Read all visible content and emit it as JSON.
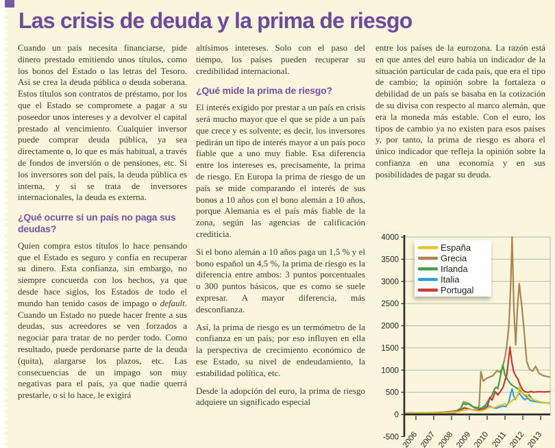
{
  "page": {
    "title": "Las crisis de deuda y la prima de riesgo"
  },
  "colors": {
    "page_bg": "#faf6dd",
    "title": "#6d4a9e",
    "heading": "#7b4fa5",
    "body_text": "#3c3a30",
    "axis": "#2b2a24",
    "grid": "#bcb9a8",
    "legend_bg": "#ffffff",
    "corner_mark": "#7a58a6"
  },
  "columns": {
    "col1": {
      "para1": "Cuando un país necesita financiarse, pide dinero prestado emitiendo unos títulos, como los bonos del Estado o las letras del Tesoro. Así se crea la deuda pública o deuda soberana. Estos títulos son contratos de préstamo, por los que el Estado se compromete a pagar a su poseedor unos intereses y a devolver el capital prestado al vencimiento. Cualquier inversor puede comprar deuda pública, ya sea directamente o, lo que es más habitual, a través de fondos de inversión o de pensiones, etc. Si los inversores son del país, la deuda pública es interna, y si se trata de inversores internacionales, la deuda es externa.",
      "heading1": "¿Qué ocurre si un país no paga sus deudas?",
      "para2_pre": "Quien compra estos títulos lo hace pensando que el Estado es seguro y confía en recuperar su dinero. Esta confianza, sin embargo, no siempre concuerda con los hechos, ya que desde hace siglos, los Estados de todo el mundo han tenido casos de impago o ",
      "para2_italic": "default",
      "para2_post": ". Cuando un Estado no puede hacer frente a sus deudas, sus acreedores se ven forzados a negociar para tratar de no perder todo. Como resultado, puede perdonarse parte de la deuda (quita), alargarse los plazos, etc. Las consecuencias de un impago son muy negativas para el país, ya que nadie querrá prestarle, o si lo hace, le exigirá"
    },
    "col2": {
      "para1": "altísimos intereses. Solo con el paso del tiempo, los países pueden recuperar su credibilidad internacional.",
      "heading1": "¿Qué mide la prima de riesgo?",
      "para2": "El interés exigido por prestar a un país en crisis será mucho mayor que el que se pide a un país que crece y es solvente; es decir, los inversores pedirán un tipo de interés mayor a un país poco fiable que a uno muy fiable. Esa diferencia entre los intereses es, precisamente, la prima de riesgo. En Europa la prima de riesgo de un país se mide comparando el interés de sus bonos a 10 años con el bono alemán a 10 años, porque Alemania es el país más fiable de la zona, según las agencias de calificación crediticia.",
      "para3": "Si el bono alemán a 10 años paga un 1,5 % y el bono español un 4,5 %, la prima de riesgo es la diferencia entre ambos: 3 puntos porcentuales o 300 puntos básicos, que es como se suele expresar. A mayor diferencia, más desconfianza.",
      "para4": "Así, la prima de riesgo es un termómetro de la confianza en un país; por eso influyen en ella la perspectiva de crecimiento económico de ese Estado, su nivel de endeudamiento, la estabilidad política, etc.",
      "para5": "Desde la adopción del euro, la prima de riesgo adquiere un significado especial"
    },
    "col3": {
      "para1": "entre los países de la eurozona. La razón está en que antes del euro había un indicador de la situación particular de cada país, que era el tipo de cambio; la opinión sobre la fortaleza o debilidad de un país se basaba en la cotización de su divisa con respecto al marco alemán, que era la moneda más estable. Con el euro, los tipos de cambio ya no existen para esos países y, por tanto, la prima de riesgo es ahora el único indicador que refleja la opinión sobre la confianza en una economía y en sus posibilidades de pagar su deuda."
    }
  },
  "chart_data": {
    "type": "line",
    "title": "",
    "xlabel": "",
    "ylabel": "",
    "units": "puntos básicos (prima de riesgo)",
    "ylim": [
      -500,
      4000
    ],
    "y_ticks": [
      -500,
      0,
      500,
      1000,
      1500,
      2000,
      2500,
      3000,
      3500,
      4000
    ],
    "x_range": [
      2005.35,
      2013.5
    ],
    "x_ticks": [
      2006,
      2007,
      2008,
      2009,
      2010,
      2011,
      2012,
      2013
    ],
    "x_tick_labels": [
      "2006",
      "2007",
      "2008",
      "2009",
      "2010",
      "2011",
      "2012",
      "2013"
    ],
    "grid": true,
    "legend_position": "top-left",
    "draw_order": [
      "Grecia",
      "Irlanda",
      "Italia",
      "Portugal",
      "España"
    ],
    "series": [
      {
        "name": "España",
        "color": "#e3c62e",
        "points": [
          [
            2005.35,
            25
          ],
          [
            2006.0,
            25
          ],
          [
            2006.5,
            25
          ],
          [
            2007.0,
            27
          ],
          [
            2007.5,
            30
          ],
          [
            2008.0,
            42
          ],
          [
            2008.4,
            60
          ],
          [
            2008.7,
            95
          ],
          [
            2009.0,
            115
          ],
          [
            2009.25,
            90
          ],
          [
            2009.6,
            72
          ],
          [
            2009.9,
            110
          ],
          [
            2010.1,
            160
          ],
          [
            2010.35,
            150
          ],
          [
            2010.6,
            190
          ],
          [
            2010.85,
            225
          ],
          [
            2011.0,
            240
          ],
          [
            2011.15,
            225
          ],
          [
            2011.3,
            280
          ],
          [
            2011.5,
            345
          ],
          [
            2011.65,
            395
          ],
          [
            2011.72,
            420
          ],
          [
            2011.82,
            630
          ],
          [
            2011.92,
            515
          ],
          [
            2012.05,
            435
          ],
          [
            2012.2,
            445
          ],
          [
            2012.4,
            375
          ],
          [
            2012.6,
            330
          ],
          [
            2012.85,
            300
          ],
          [
            2013.1,
            275
          ],
          [
            2013.5,
            262
          ]
        ]
      },
      {
        "name": "Grecia",
        "color": "#a8854e",
        "points": [
          [
            2005.35,
            35
          ],
          [
            2006.0,
            35
          ],
          [
            2006.5,
            35
          ],
          [
            2007.0,
            38
          ],
          [
            2007.5,
            48
          ],
          [
            2008.0,
            70
          ],
          [
            2008.3,
            90
          ],
          [
            2008.55,
            150
          ],
          [
            2008.68,
            285
          ],
          [
            2008.9,
            255
          ],
          [
            2009.1,
            195
          ],
          [
            2009.3,
            145
          ],
          [
            2009.45,
            128
          ],
          [
            2009.55,
            195
          ],
          [
            2009.65,
            965
          ],
          [
            2009.78,
            750
          ],
          [
            2009.95,
            810
          ],
          [
            2010.15,
            845
          ],
          [
            2010.35,
            880
          ],
          [
            2010.55,
            990
          ],
          [
            2010.7,
            950
          ],
          [
            2010.85,
            1030
          ],
          [
            2011.0,
            1290
          ],
          [
            2011.1,
            1545
          ],
          [
            2011.22,
            2000
          ],
          [
            2011.32,
            2900
          ],
          [
            2011.4,
            4000
          ],
          [
            2011.5,
            2370
          ],
          [
            2011.6,
            1570
          ],
          [
            2011.7,
            2400
          ],
          [
            2011.8,
            2950
          ],
          [
            2011.95,
            2420
          ],
          [
            2012.08,
            1850
          ],
          [
            2012.22,
            1190
          ],
          [
            2012.38,
            1020
          ],
          [
            2012.55,
            975
          ],
          [
            2012.72,
            1085
          ],
          [
            2012.9,
            935
          ],
          [
            2013.1,
            880
          ],
          [
            2013.3,
            860
          ],
          [
            2013.5,
            845
          ]
        ]
      },
      {
        "name": "Irlanda",
        "color": "#3fa147",
        "points": [
          [
            2005.35,
            18
          ],
          [
            2006.5,
            18
          ],
          [
            2007.2,
            20
          ],
          [
            2007.8,
            28
          ],
          [
            2008.2,
            55
          ],
          [
            2008.5,
            125
          ],
          [
            2008.65,
            250
          ],
          [
            2008.8,
            225
          ],
          [
            2009.0,
            240
          ],
          [
            2009.2,
            175
          ],
          [
            2009.45,
            150
          ],
          [
            2009.65,
            138
          ],
          [
            2009.9,
            205
          ],
          [
            2010.1,
            335
          ],
          [
            2010.25,
            420
          ],
          [
            2010.4,
            560
          ],
          [
            2010.5,
            615
          ],
          [
            2010.6,
            585
          ],
          [
            2010.75,
            880
          ],
          [
            2010.88,
            1120
          ],
          [
            2011.0,
            890
          ],
          [
            2011.15,
            780
          ],
          [
            2011.35,
            675
          ],
          [
            2011.55,
            620
          ],
          [
            2011.75,
            570
          ],
          [
            2011.95,
            490
          ],
          [
            2012.1,
            430
          ],
          [
            2012.25,
            400
          ],
          [
            2012.35,
            440
          ],
          [
            2012.55,
            335
          ],
          [
            2012.8,
            305
          ],
          [
            2013.1,
            272
          ],
          [
            2013.5,
            255
          ]
        ]
      },
      {
        "name": "Italia",
        "color": "#2f9fd8",
        "points": [
          [
            2005.35,
            25
          ],
          [
            2006.5,
            25
          ],
          [
            2007.2,
            27
          ],
          [
            2007.8,
            32
          ],
          [
            2008.2,
            45
          ],
          [
            2008.55,
            100
          ],
          [
            2008.72,
            150
          ],
          [
            2009.0,
            122
          ],
          [
            2009.15,
            103
          ],
          [
            2009.4,
            95
          ],
          [
            2009.65,
            112
          ],
          [
            2009.9,
            178
          ],
          [
            2010.1,
            188
          ],
          [
            2010.3,
            155
          ],
          [
            2010.5,
            140
          ],
          [
            2010.7,
            165
          ],
          [
            2010.88,
            188
          ],
          [
            2011.05,
            178
          ],
          [
            2011.2,
            265
          ],
          [
            2011.32,
            470
          ],
          [
            2011.4,
            575
          ],
          [
            2011.48,
            430
          ],
          [
            2011.57,
            335
          ],
          [
            2011.7,
            430
          ],
          [
            2011.8,
            475
          ],
          [
            2011.95,
            395
          ],
          [
            2012.1,
            330
          ],
          [
            2012.25,
            368
          ],
          [
            2012.45,
            308
          ],
          [
            2012.7,
            290
          ],
          [
            2013.0,
            272
          ],
          [
            2013.5,
            262
          ]
        ]
      },
      {
        "name": "Portugal",
        "color": "#cd3630",
        "points": [
          [
            2005.35,
            20
          ],
          [
            2006.5,
            20
          ],
          [
            2007.2,
            24
          ],
          [
            2007.8,
            30
          ],
          [
            2008.2,
            45
          ],
          [
            2008.55,
            105
          ],
          [
            2008.7,
            148
          ],
          [
            2009.0,
            118
          ],
          [
            2009.2,
            98
          ],
          [
            2009.45,
            88
          ],
          [
            2009.65,
            125
          ],
          [
            2009.8,
            112
          ],
          [
            2010.0,
            165
          ],
          [
            2010.15,
            385
          ],
          [
            2010.28,
            325
          ],
          [
            2010.45,
            515
          ],
          [
            2010.6,
            440
          ],
          [
            2010.75,
            520
          ],
          [
            2010.9,
            620
          ],
          [
            2011.0,
            770
          ],
          [
            2011.1,
            900
          ],
          [
            2011.2,
            1240
          ],
          [
            2011.28,
            1520
          ],
          [
            2011.38,
            1185
          ],
          [
            2011.48,
            975
          ],
          [
            2011.6,
            870
          ],
          [
            2011.72,
            805
          ],
          [
            2011.85,
            660
          ],
          [
            2011.98,
            560
          ],
          [
            2012.1,
            515
          ],
          [
            2012.3,
            498
          ],
          [
            2012.45,
            518
          ],
          [
            2012.6,
            502
          ],
          [
            2012.9,
            512
          ],
          [
            2013.2,
            508
          ],
          [
            2013.5,
            515
          ]
        ]
      }
    ]
  }
}
